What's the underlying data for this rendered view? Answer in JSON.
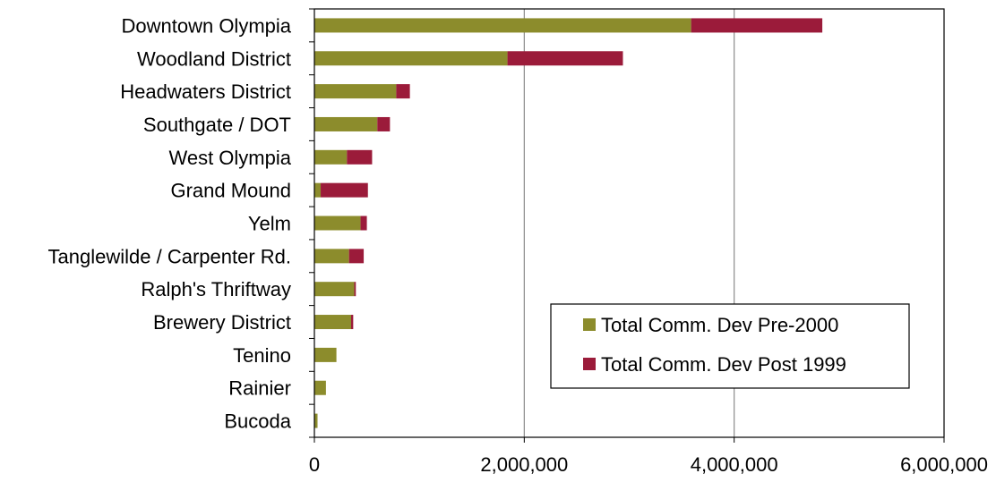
{
  "chart_data": {
    "type": "bar",
    "orientation": "horizontal",
    "stacked": true,
    "categories": [
      "Downtown Olympia",
      "Woodland District",
      "Headwaters District",
      "Southgate / DOT",
      "West Olympia",
      "Grand Mound",
      "Yelm",
      "Tanglewilde / Carpenter Rd.",
      "Ralph's Thriftway",
      "Brewery District",
      "Tenino",
      "Rainier",
      "Bucoda"
    ],
    "series": [
      {
        "name": "Total Comm. Dev Pre-2000",
        "color": "#8c8c2c",
        "values": [
          3590000,
          1840000,
          780000,
          600000,
          310000,
          60000,
          440000,
          330000,
          380000,
          350000,
          210000,
          110000,
          30000
        ]
      },
      {
        "name": "Total Comm. Dev Post 1999",
        "color": "#9b1b3a",
        "values": [
          1250000,
          1100000,
          130000,
          120000,
          240000,
          450000,
          60000,
          140000,
          15000,
          20000,
          0,
          0,
          0
        ]
      }
    ],
    "xlim": [
      0,
      6000000
    ],
    "x_ticks": [
      {
        "value": 0,
        "label": "0"
      },
      {
        "value": 2000000,
        "label": "2,000,000"
      },
      {
        "value": 4000000,
        "label": "4,000,000"
      },
      {
        "value": 6000000,
        "label": "6,000,000"
      }
    ],
    "grid": "vertical",
    "legend_position": "lower-right",
    "title": "",
    "xlabel": "",
    "ylabel": ""
  }
}
